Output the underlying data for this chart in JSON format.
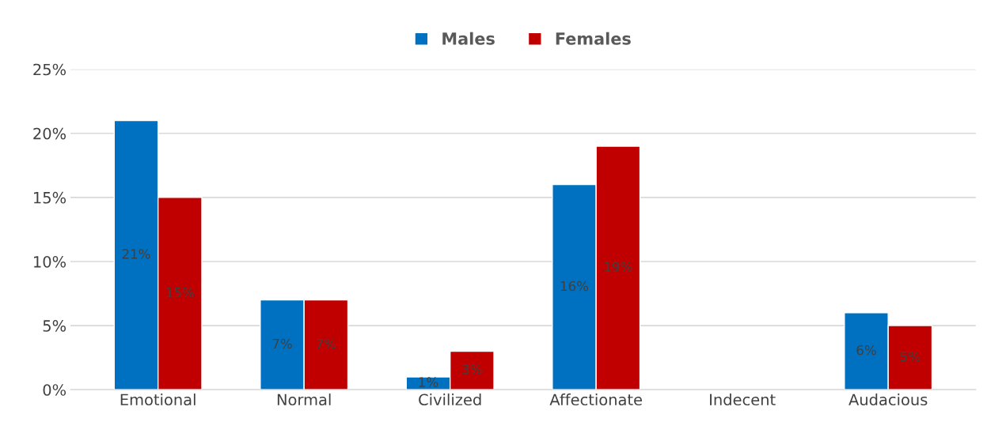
{
  "chart_data": {
    "type": "bar",
    "categories": [
      "Emotional",
      "Normal",
      "Civilized",
      "Affectionate",
      "Indecent",
      "Audacious"
    ],
    "series": [
      {
        "name": "Males",
        "color": "#0070c0",
        "values": [
          21,
          7,
          1,
          16,
          null,
          6
        ],
        "value_labels": [
          "21%",
          "7%",
          "1%",
          "16%",
          null,
          "6%"
        ]
      },
      {
        "name": "Females",
        "color": "#c00000",
        "values": [
          15,
          7,
          3,
          19,
          null,
          5
        ],
        "value_labels": [
          "15%",
          "7%",
          "3%",
          "19%",
          null,
          "5%"
        ]
      }
    ],
    "ylim": [
      0,
      25
    ],
    "yticks": [
      {
        "value": 0,
        "label": "0%"
      },
      {
        "value": 5,
        "label": "5%"
      },
      {
        "value": 10,
        "label": "10%"
      },
      {
        "value": 15,
        "label": "15%"
      },
      {
        "value": 20,
        "label": "20%"
      },
      {
        "value": 25,
        "label": "25%"
      }
    ],
    "grid": "y",
    "legend": "top"
  }
}
